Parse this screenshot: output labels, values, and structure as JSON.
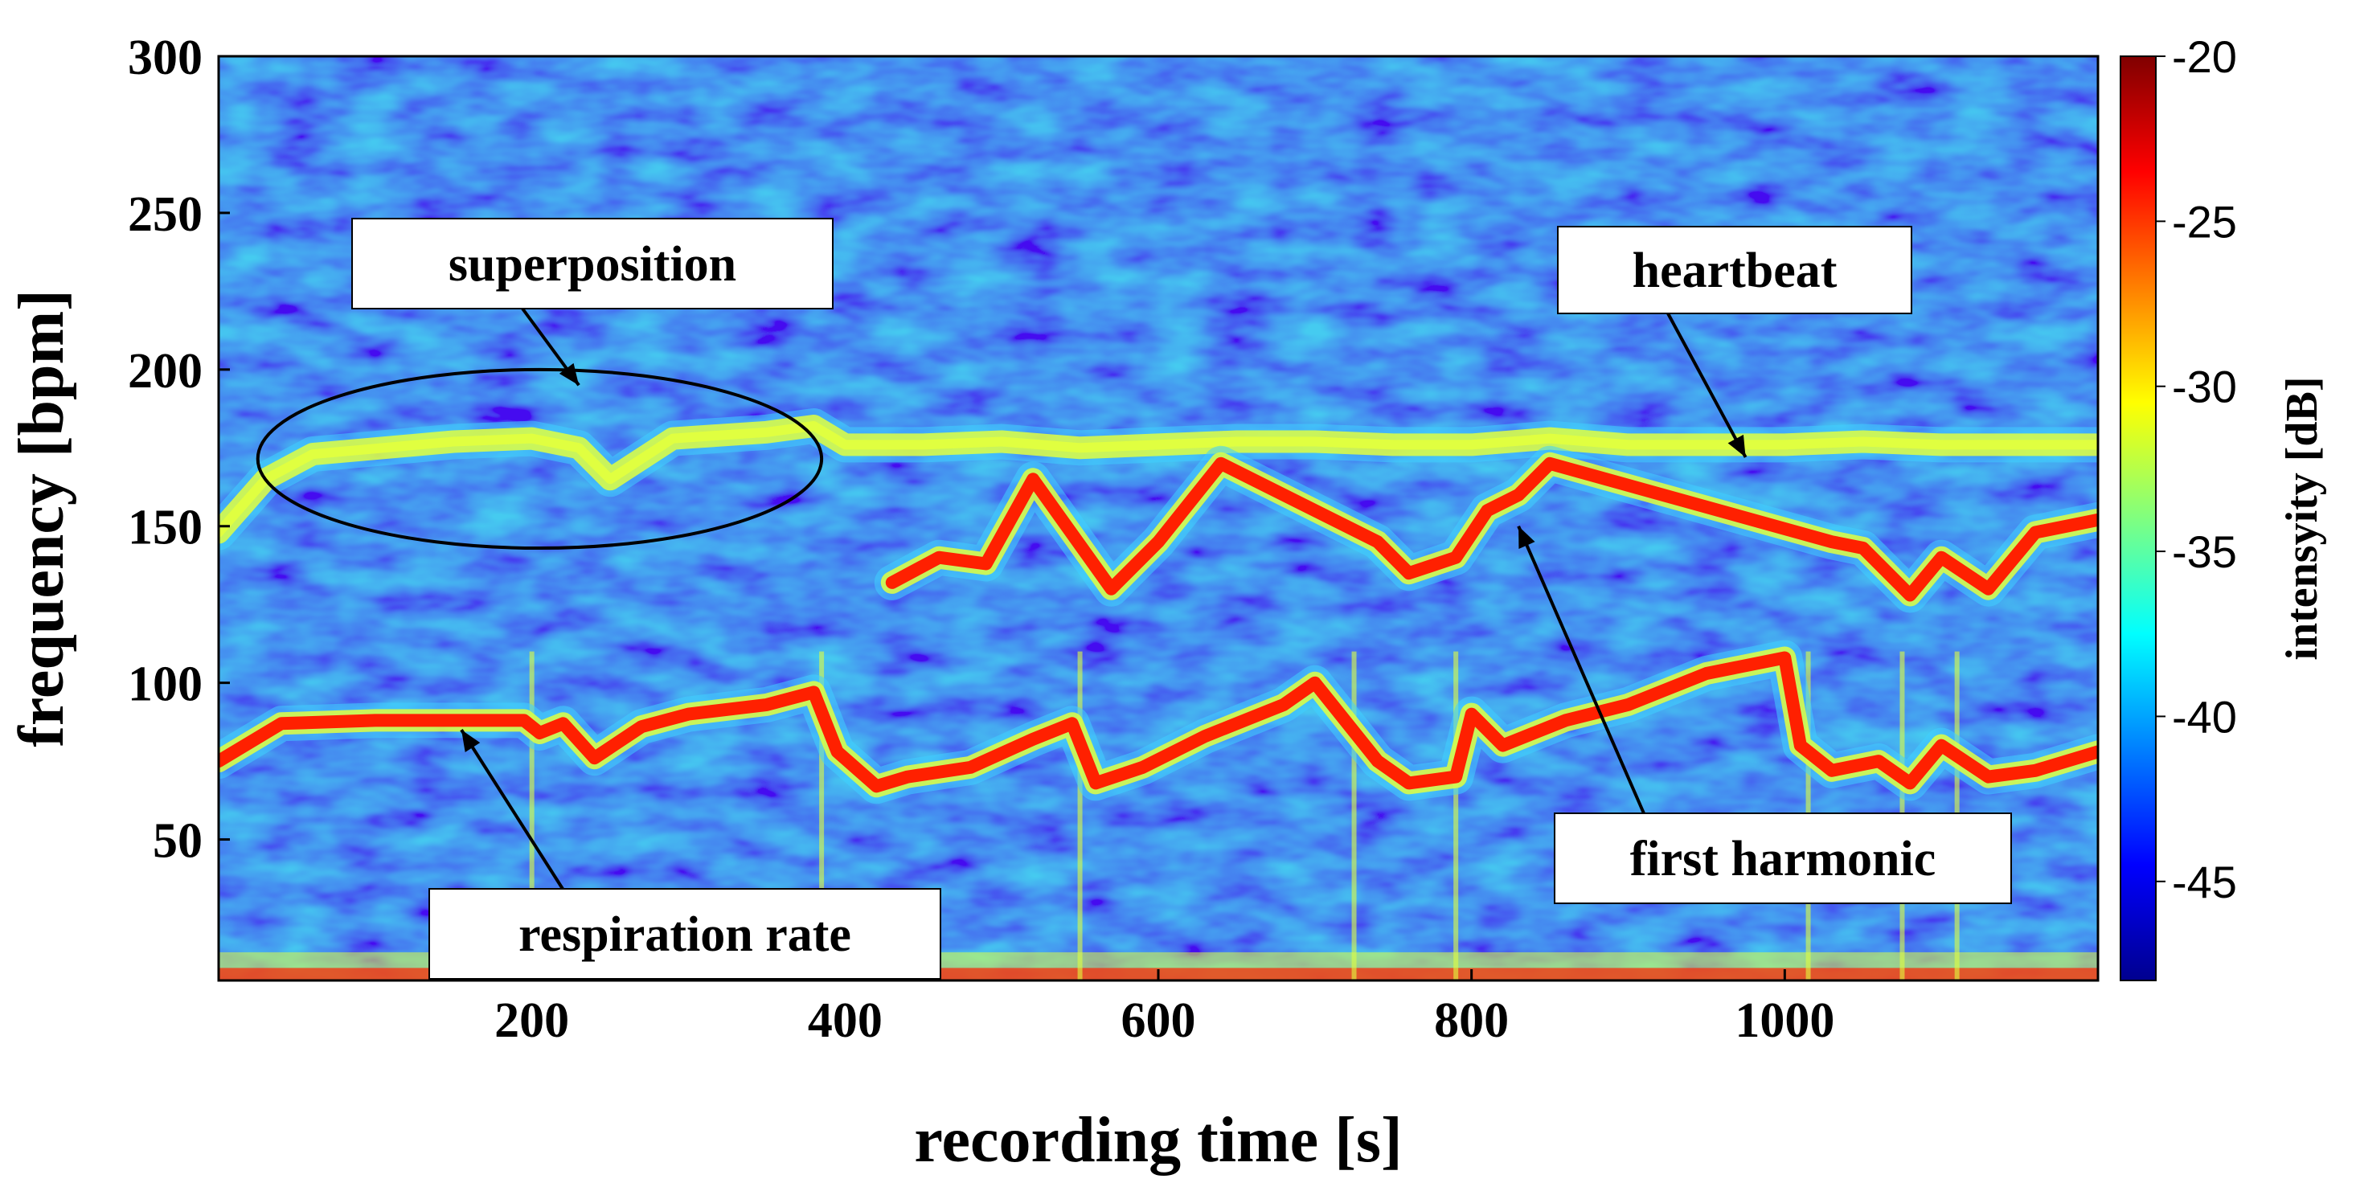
{
  "chart_data": {
    "type": "heatmap",
    "title": "",
    "xlabel": "recording time [s]",
    "ylabel": "frequency [bpm]",
    "colorbar_label": "intensyity [dB]",
    "xlim": [
      0,
      1200
    ],
    "ylim": [
      5,
      300
    ],
    "xticks": [
      200,
      400,
      600,
      800,
      1000
    ],
    "yticks": [
      50,
      100,
      150,
      200,
      250,
      300
    ],
    "colorbar_range": [
      -48,
      -20
    ],
    "colorbar_ticks": [
      -20,
      -25,
      -30,
      -35,
      -40,
      -45
    ],
    "colors": {
      "low": "#00008f",
      "mid": "#40d0ff",
      "upper_mid": "#e0ff40",
      "high": "#ff2000",
      "max": "#800000"
    },
    "series": [
      {
        "name": "respiration rate",
        "x": [
          0,
          40,
          100,
          150,
          195,
          205,
          220,
          240,
          270,
          300,
          350,
          380,
          395,
          420,
          440,
          480,
          520,
          545,
          560,
          590,
          630,
          680,
          700,
          740,
          760,
          790,
          800,
          820,
          860,
          900,
          950,
          1000,
          1010,
          1030,
          1060,
          1080,
          1100,
          1130,
          1160,
          1200
        ],
        "y": [
          75,
          87,
          88,
          88,
          88,
          84,
          87,
          76,
          86,
          90,
          93,
          97,
          78,
          67,
          70,
          73,
          82,
          87,
          68,
          73,
          83,
          93,
          100,
          75,
          68,
          70,
          90,
          80,
          88,
          93,
          103,
          108,
          80,
          72,
          75,
          68,
          80,
          70,
          72,
          78
        ]
      },
      {
        "name": "heartbeat",
        "x": [
          0,
          30,
          60,
          150,
          200,
          230,
          250,
          290,
          350,
          380,
          400,
          450,
          500,
          550,
          600,
          650,
          700,
          750,
          800,
          850,
          900,
          950,
          1000,
          1050,
          1100,
          1150,
          1200
        ],
        "y": [
          148,
          165,
          173,
          177,
          178,
          175,
          165,
          178,
          180,
          182,
          176,
          176,
          177,
          175,
          176,
          177,
          177,
          176,
          176,
          178,
          176,
          176,
          176,
          177,
          176,
          176,
          176
        ]
      },
      {
        "name": "first harmonic",
        "x": [
          430,
          460,
          490,
          520,
          570,
          600,
          640,
          740,
          760,
          790,
          810,
          830,
          850,
          1030,
          1050,
          1080,
          1100,
          1130,
          1160,
          1200
        ],
        "y": [
          132,
          140,
          138,
          165,
          130,
          145,
          170,
          145,
          135,
          140,
          155,
          160,
          170,
          145,
          143,
          128,
          140,
          130,
          148,
          152
        ]
      }
    ],
    "annotations": [
      {
        "label": "superposition",
        "target_x": 230,
        "target_y": 195
      },
      {
        "label": "heartbeat",
        "target_x": 975,
        "target_y": 172
      },
      {
        "label": "first harmonic",
        "target_x": 830,
        "target_y": 150
      },
      {
        "label": "respiration rate",
        "target_x": 155,
        "target_y": 85
      }
    ],
    "ellipse_region": {
      "x_range": [
        25,
        385
      ],
      "y_range": [
        143,
        200
      ]
    }
  }
}
